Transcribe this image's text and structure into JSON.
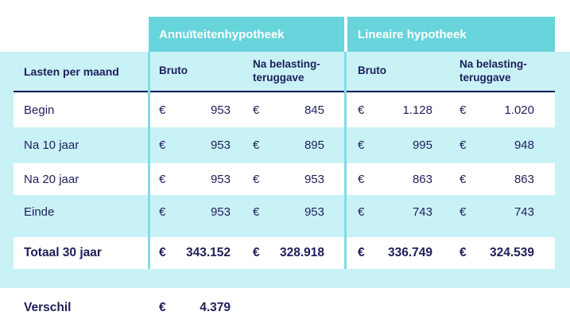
{
  "colors": {
    "teal_header": "#68D4DB",
    "light_blue_panel": "#C9F2F6",
    "navy_text": "#1E1E5A",
    "white": "#FFFFFF",
    "separator_line": "#7FDDE4"
  },
  "table": {
    "currency": "€",
    "group_headers": [
      {
        "label": "Annuïteitenhypotheek"
      },
      {
        "label": "Lineaire hypotheek"
      }
    ],
    "row_header": {
      "label": "Lasten per maand",
      "columns": [
        "Bruto",
        "Na belasting-teruggave"
      ]
    },
    "rows": [
      {
        "label": "Begin",
        "values": [
          "953",
          "845",
          "1.128",
          "1.020"
        ]
      },
      {
        "label": "Na 10 jaar",
        "values": [
          "953",
          "895",
          "995",
          "948"
        ]
      },
      {
        "label": "Na 20 jaar",
        "values": [
          "953",
          "953",
          "863",
          "863"
        ]
      },
      {
        "label": "Einde",
        "values": [
          "953",
          "953",
          "743",
          "743"
        ]
      },
      {
        "label": "Totaal 30 jaar",
        "values": [
          "343.152",
          "328.918",
          "336.749",
          "324.539"
        ]
      }
    ],
    "footer": {
      "label": "Verschil",
      "value": "4.379"
    }
  },
  "chart_data": {
    "type": "table",
    "title": "",
    "column_groups": [
      "Annuïteitenhypotheek",
      "Lineaire hypotheek"
    ],
    "columns": [
      "Lasten per maand",
      "Annuïteitenhypotheek Bruto",
      "Annuïteitenhypotheek Na belasting-teruggave",
      "Lineaire hypotheek Bruto",
      "Lineaire hypotheek Na belasting-teruggave"
    ],
    "rows": [
      [
        "Begin",
        953,
        845,
        1128,
        1020
      ],
      [
        "Na 10 jaar",
        953,
        895,
        995,
        948
      ],
      [
        "Na 20 jaar",
        953,
        953,
        863,
        863
      ],
      [
        "Einde",
        953,
        953,
        743,
        743
      ],
      [
        "Totaal 30 jaar",
        343152,
        328918,
        336749,
        324539
      ]
    ],
    "footer_row": [
      "Verschil",
      4379
    ],
    "currency": "EUR"
  }
}
